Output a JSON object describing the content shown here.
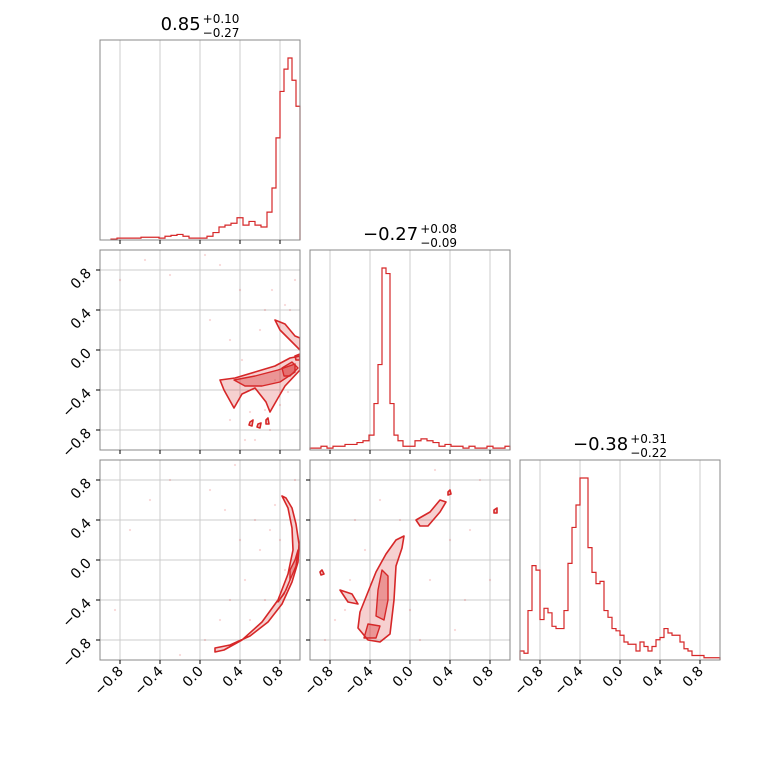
{
  "chart_data": {
    "type": "corner",
    "axis_range": [
      -1.0,
      1.0
    ],
    "ticks": [
      -0.8,
      -0.4,
      0.0,
      0.4,
      0.8
    ],
    "tick_labels": [
      "−0.8",
      "−0.4",
      "0.0",
      "0.4",
      "0.8"
    ],
    "grid": true,
    "color": "#d62728",
    "titles": [
      {
        "median": "0.85",
        "plus": "+0.10",
        "minus": "−0.27"
      },
      {
        "median": "−0.27",
        "plus": "+0.08",
        "minus": "−0.09"
      },
      {
        "median": "−0.38",
        "plus": "+0.31",
        "minus": "−0.22"
      }
    ],
    "histograms": [
      {
        "x": [
          -0.86,
          -0.8,
          -0.74,
          -0.68,
          -0.62,
          -0.56,
          -0.5,
          -0.44,
          -0.38,
          -0.32,
          -0.26,
          -0.2,
          -0.14,
          -0.08,
          -0.02,
          0.04,
          0.1,
          0.16,
          0.22,
          0.28,
          0.34,
          0.4,
          0.46,
          0.52,
          0.58,
          0.64,
          0.7,
          0.74,
          0.78,
          0.82,
          0.86,
          0.9,
          0.94,
          0.98
        ],
        "values": [
          0.005,
          0.01,
          0.01,
          0.01,
          0.01,
          0.015,
          0.015,
          0.015,
          0.01,
          0.02,
          0.025,
          0.03,
          0.02,
          0.01,
          0.01,
          0.01,
          0.02,
          0.04,
          0.07,
          0.08,
          0.09,
          0.12,
          0.08,
          0.1,
          0.08,
          0.07,
          0.15,
          0.28,
          0.55,
          0.8,
          0.92,
          0.98,
          0.86,
          0.72
        ]
      },
      {
        "x": [
          -0.98,
          -0.92,
          -0.86,
          -0.8,
          -0.74,
          -0.68,
          -0.62,
          -0.56,
          -0.5,
          -0.44,
          -0.38,
          -0.34,
          -0.3,
          -0.26,
          -0.22,
          -0.18,
          -0.14,
          -0.1,
          -0.04,
          0.02,
          0.08,
          0.14,
          0.2,
          0.26,
          0.32,
          0.38,
          0.44,
          0.5,
          0.56,
          0.62,
          0.68,
          0.74,
          0.8,
          0.86,
          0.92,
          0.98
        ],
        "values": [
          0.01,
          0.01,
          0.02,
          0.01,
          0.02,
          0.02,
          0.03,
          0.03,
          0.04,
          0.05,
          0.08,
          0.25,
          0.46,
          0.98,
          0.95,
          0.25,
          0.08,
          0.05,
          0.02,
          0.02,
          0.05,
          0.06,
          0.05,
          0.04,
          0.02,
          0.03,
          0.02,
          0.02,
          0.01,
          0.02,
          0.01,
          0.01,
          0.02,
          0.01,
          0.01,
          0.02
        ]
      },
      {
        "x": [
          -0.98,
          -0.94,
          -0.9,
          -0.86,
          -0.82,
          -0.78,
          -0.74,
          -0.7,
          -0.66,
          -0.62,
          -0.58,
          -0.54,
          -0.5,
          -0.46,
          -0.42,
          -0.38,
          -0.34,
          -0.3,
          -0.26,
          -0.22,
          -0.18,
          -0.14,
          -0.1,
          -0.06,
          -0.02,
          0.02,
          0.06,
          0.1,
          0.14,
          0.18,
          0.22,
          0.26,
          0.3,
          0.34,
          0.38,
          0.42,
          0.46,
          0.5,
          0.54,
          0.58,
          0.62,
          0.66,
          0.7,
          0.74,
          0.78,
          0.82,
          0.86,
          0.9,
          0.94,
          0.98
        ],
        "values": [
          0.04,
          0.03,
          0.22,
          0.42,
          0.4,
          0.18,
          0.23,
          0.21,
          0.15,
          0.14,
          0.14,
          0.22,
          0.43,
          0.59,
          0.69,
          0.81,
          0.81,
          0.5,
          0.39,
          0.34,
          0.35,
          0.22,
          0.19,
          0.14,
          0.13,
          0.11,
          0.08,
          0.07,
          0.07,
          0.04,
          0.08,
          0.06,
          0.04,
          0.06,
          0.09,
          0.1,
          0.14,
          0.12,
          0.11,
          0.11,
          0.08,
          0.05,
          0.04,
          0.02,
          0.02,
          0.02,
          0.01,
          0.01,
          0.01,
          0.01
        ]
      }
    ],
    "contours": [
      {
        "pair": [
          0,
          1
        ],
        "regions": [
          [
            [
              0.2,
              -0.3
            ],
            [
              0.35,
              -0.28
            ],
            [
              0.55,
              -0.22
            ],
            [
              0.75,
              -0.16
            ],
            [
              0.9,
              -0.08
            ],
            [
              1.0,
              -0.06
            ],
            [
              1.0,
              -0.2
            ],
            [
              0.85,
              -0.36
            ],
            [
              0.78,
              -0.48
            ],
            [
              0.7,
              -0.62
            ],
            [
              0.66,
              -0.52
            ],
            [
              0.55,
              -0.38
            ],
            [
              0.42,
              -0.44
            ],
            [
              0.34,
              -0.58
            ],
            [
              0.24,
              -0.4
            ]
          ],
          [
            [
              0.75,
              0.3
            ],
            [
              0.85,
              0.26
            ],
            [
              0.95,
              0.14
            ],
            [
              1.0,
              0.12
            ],
            [
              1.0,
              0.0
            ],
            [
              0.9,
              0.1
            ],
            [
              0.8,
              0.2
            ]
          ],
          [
            [
              0.95,
              -0.06
            ],
            [
              1.0,
              -0.04
            ],
            [
              1.0,
              -0.1
            ],
            [
              0.96,
              -0.1
            ]
          ],
          [
            [
              0.5,
              -0.72
            ],
            [
              0.53,
              -0.7
            ],
            [
              0.52,
              -0.76
            ],
            [
              0.49,
              -0.75
            ]
          ],
          [
            [
              0.58,
              -0.74
            ],
            [
              0.61,
              -0.73
            ],
            [
              0.6,
              -0.78
            ],
            [
              0.57,
              -0.77
            ]
          ],
          [
            [
              0.66,
              -0.7
            ],
            [
              0.68,
              -0.68
            ],
            [
              0.69,
              -0.74
            ],
            [
              0.66,
              -0.74
            ]
          ]
        ],
        "inner_regions": [
          [
            [
              0.34,
              -0.3
            ],
            [
              0.55,
              -0.26
            ],
            [
              0.78,
              -0.2
            ],
            [
              0.95,
              -0.14
            ],
            [
              0.95,
              -0.22
            ],
            [
              0.8,
              -0.32
            ],
            [
              0.62,
              -0.36
            ],
            [
              0.45,
              -0.36
            ]
          ],
          [
            [
              0.82,
              -0.18
            ],
            [
              0.92,
              -0.12
            ],
            [
              0.98,
              -0.18
            ],
            [
              0.9,
              -0.26
            ],
            [
              0.84,
              -0.26
            ]
          ]
        ],
        "scatter": [
          [
            0.6,
            0.2
          ],
          [
            0.72,
            0.6
          ],
          [
            0.85,
            0.45
          ],
          [
            0.3,
            0.1
          ],
          [
            0.42,
            -0.1
          ],
          [
            0.65,
            -0.6
          ],
          [
            0.7,
            -0.8
          ],
          [
            0.55,
            -0.9
          ],
          [
            0.8,
            -0.55
          ],
          [
            0.9,
            0.4
          ],
          [
            0.88,
            -0.42
          ],
          [
            0.5,
            -0.62
          ],
          [
            0.2,
            0.85
          ],
          [
            0.05,
            0.95
          ],
          [
            -0.3,
            0.75
          ],
          [
            -0.55,
            0.9
          ],
          [
            -0.8,
            0.7
          ],
          [
            0.4,
            0.6
          ],
          [
            0.1,
            0.3
          ],
          [
            0.65,
            0.4
          ],
          [
            0.75,
            -0.3
          ],
          [
            0.3,
            -0.7
          ],
          [
            0.45,
            -0.9
          ],
          [
            0.95,
            0.7
          ]
        ]
      },
      {
        "pair": [
          0,
          2
        ],
        "regions": [
          [
            [
              0.15,
              -0.88
            ],
            [
              0.3,
              -0.85
            ],
            [
              0.5,
              -0.76
            ],
            [
              0.68,
              -0.62
            ],
            [
              0.82,
              -0.44
            ],
            [
              0.92,
              -0.22
            ],
            [
              0.98,
              -0.02
            ],
            [
              0.99,
              0.16
            ],
            [
              0.96,
              0.36
            ],
            [
              0.92,
              0.52
            ],
            [
              0.86,
              0.62
            ],
            [
              0.82,
              0.64
            ],
            [
              0.88,
              0.52
            ],
            [
              0.92,
              0.32
            ],
            [
              0.93,
              0.1
            ],
            [
              0.88,
              -0.14
            ],
            [
              0.78,
              -0.4
            ],
            [
              0.62,
              -0.62
            ],
            [
              0.42,
              -0.8
            ],
            [
              0.24,
              -0.9
            ],
            [
              0.15,
              -0.92
            ]
          ]
        ],
        "inner_regions": [
          [
            [
              0.9,
              -0.2
            ],
            [
              0.96,
              -0.06
            ],
            [
              0.98,
              0.1
            ],
            [
              0.95,
              0.0
            ],
            [
              0.9,
              -0.1
            ]
          ],
          [
            [
              0.78,
              -0.42
            ],
            [
              0.86,
              -0.3
            ],
            [
              0.9,
              -0.2
            ],
            [
              0.84,
              -0.34
            ]
          ]
        ],
        "scatter": [
          [
            0.3,
            -0.4
          ],
          [
            0.45,
            -0.2
          ],
          [
            0.6,
            0.1
          ],
          [
            0.7,
            0.3
          ],
          [
            0.75,
            0.55
          ],
          [
            0.55,
            0.4
          ],
          [
            0.4,
            0.2
          ],
          [
            0.2,
            -0.6
          ],
          [
            0.05,
            -0.8
          ],
          [
            -0.2,
            -0.95
          ],
          [
            -0.5,
            0.6
          ],
          [
            -0.7,
            0.3
          ],
          [
            -0.3,
            0.8
          ],
          [
            0.1,
            0.7
          ],
          [
            0.5,
            -0.6
          ],
          [
            0.65,
            -0.4
          ],
          [
            0.8,
            0.2
          ],
          [
            0.85,
            -0.1
          ],
          [
            0.95,
            0.8
          ],
          [
            -0.85,
            -0.5
          ],
          [
            0.35,
            0.95
          ],
          [
            0.25,
            0.5
          ]
        ]
      },
      {
        "pair": [
          1,
          2
        ],
        "regions": [
          [
            [
              -0.42,
              -0.8
            ],
            [
              -0.3,
              -0.82
            ],
            [
              -0.2,
              -0.74
            ],
            [
              -0.16,
              -0.4
            ],
            [
              -0.14,
              -0.06
            ],
            [
              -0.08,
              0.12
            ],
            [
              -0.06,
              0.24
            ],
            [
              -0.14,
              0.2
            ],
            [
              -0.24,
              0.06
            ],
            [
              -0.34,
              -0.12
            ],
            [
              -0.42,
              -0.32
            ],
            [
              -0.5,
              -0.52
            ],
            [
              -0.52,
              -0.68
            ]
          ],
          [
            [
              0.06,
              0.4
            ],
            [
              0.2,
              0.48
            ],
            [
              0.3,
              0.6
            ],
            [
              0.36,
              0.58
            ],
            [
              0.3,
              0.48
            ],
            [
              0.18,
              0.34
            ],
            [
              0.1,
              0.34
            ]
          ],
          [
            [
              -0.7,
              -0.3
            ],
            [
              -0.58,
              -0.34
            ],
            [
              -0.52,
              -0.44
            ],
            [
              -0.62,
              -0.42
            ]
          ],
          [
            [
              -0.9,
              -0.12
            ],
            [
              -0.88,
              -0.1
            ],
            [
              -0.86,
              -0.14
            ],
            [
              -0.89,
              -0.15
            ]
          ],
          [
            [
              0.84,
              0.5
            ],
            [
              0.87,
              0.52
            ],
            [
              0.87,
              0.47
            ],
            [
              0.84,
              0.47
            ]
          ],
          [
            [
              0.38,
              0.68
            ],
            [
              0.4,
              0.7
            ],
            [
              0.41,
              0.66
            ],
            [
              0.38,
              0.65
            ]
          ]
        ],
        "inner_regions": [
          [
            [
              -0.34,
              -0.56
            ],
            [
              -0.26,
              -0.6
            ],
            [
              -0.22,
              -0.4
            ],
            [
              -0.22,
              -0.16
            ],
            [
              -0.28,
              -0.1
            ],
            [
              -0.32,
              -0.3
            ]
          ],
          [
            [
              -0.46,
              -0.78
            ],
            [
              -0.34,
              -0.78
            ],
            [
              -0.3,
              -0.66
            ],
            [
              -0.42,
              -0.64
            ]
          ]
        ],
        "scatter": [
          [
            -0.6,
            -0.2
          ],
          [
            -0.75,
            -0.6
          ],
          [
            -0.45,
            0.1
          ],
          [
            -0.1,
            0.4
          ],
          [
            0.0,
            -0.5
          ],
          [
            0.2,
            -0.2
          ],
          [
            0.4,
            0.2
          ],
          [
            0.55,
            -0.4
          ],
          [
            0.7,
            0.8
          ],
          [
            -0.85,
            -0.8
          ],
          [
            -0.55,
            0.4
          ],
          [
            0.1,
            -0.8
          ],
          [
            0.6,
            0.3
          ],
          [
            0.8,
            -0.2
          ],
          [
            -0.3,
            0.6
          ],
          [
            0.25,
            0.9
          ],
          [
            -0.65,
            -0.5
          ],
          [
            0.45,
            -0.7
          ]
        ]
      }
    ]
  }
}
